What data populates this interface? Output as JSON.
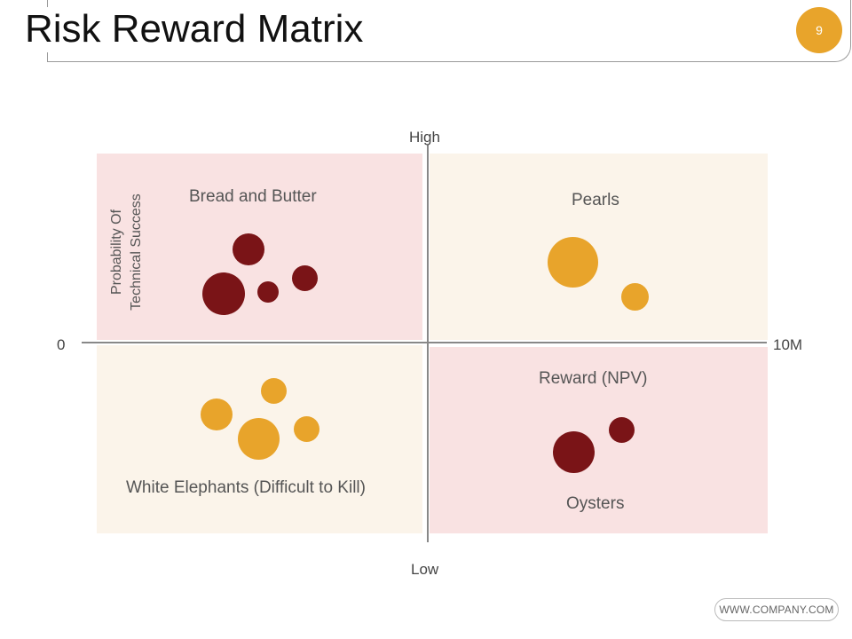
{
  "header": {
    "title": "Risk Reward Matrix",
    "page_number": "9"
  },
  "matrix": {
    "axis_top_label": "High",
    "axis_bottom_label": "Low",
    "axis_left_label": "0",
    "axis_right_label": "10M",
    "y_axis_title_line1": "Probability Of",
    "y_axis_title_line2": "Technical Success",
    "x_axis_title": "Reward (NPV)",
    "quadrants": {
      "top_left": "Bread and Butter",
      "top_right": "Pearls",
      "bottom_left": "White Elephants (Difficult to Kill)",
      "bottom_right": "Oysters"
    },
    "colors": {
      "dark_bubble": "#7a1417",
      "gold_bubble": "#e8a42b",
      "pink_quadrant": "#f9e2e2",
      "cream_quadrant": "#fbf4ea"
    }
  },
  "footer": {
    "url": "WWW.COMPANY.COM"
  }
}
